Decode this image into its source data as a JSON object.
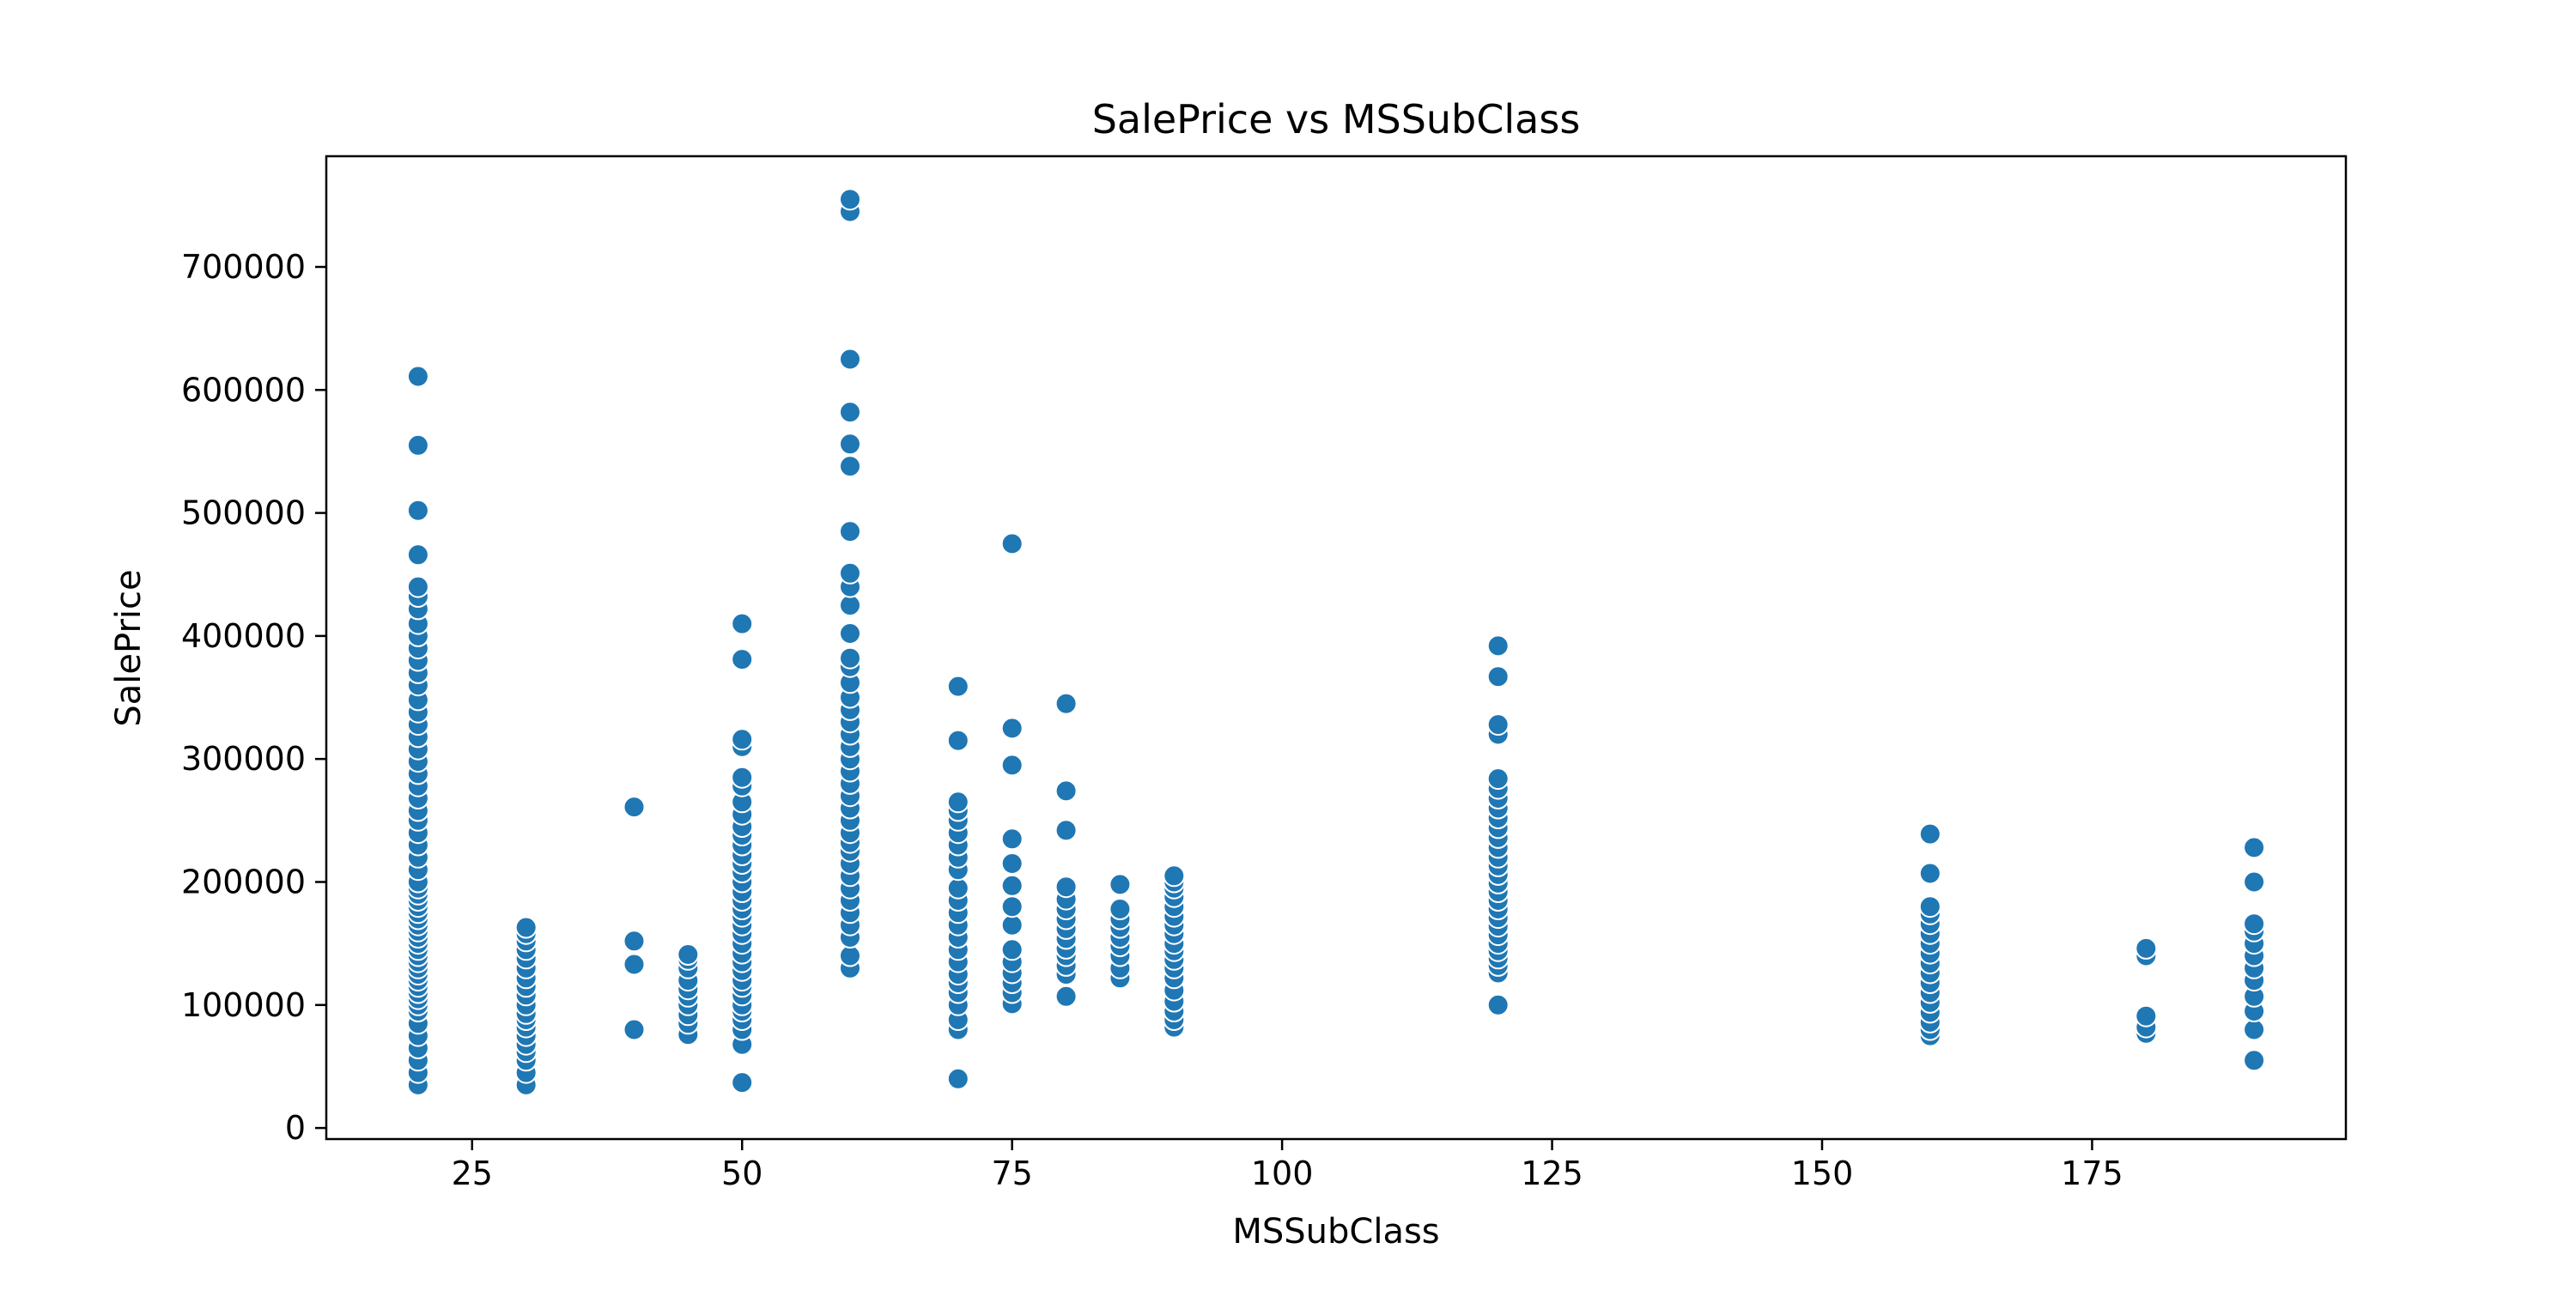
{
  "chart_data": {
    "type": "scatter",
    "title": "SalePrice vs MSSubClass",
    "xlabel": "MSSubClass",
    "ylabel": "SalePrice",
    "xlim": [
      11.5,
      198.5
    ],
    "ylim": [
      -9000,
      790000
    ],
    "xticks": [
      25,
      50,
      75,
      100,
      125,
      150,
      175
    ],
    "yticks": [
      0,
      100000,
      200000,
      300000,
      400000,
      500000,
      600000,
      700000
    ],
    "grid": false,
    "legend": "none",
    "marker_color": "#1f77b4",
    "marker_edge_color": "#ffffff",
    "series": [
      {
        "points": [
          [
            20,
            35000
          ],
          [
            20,
            45000
          ],
          [
            20,
            55000
          ],
          [
            20,
            65000
          ],
          [
            20,
            75000
          ],
          [
            20,
            85000
          ],
          [
            20,
            95000
          ],
          [
            20,
            100000
          ],
          [
            20,
            105000
          ],
          [
            20,
            110000
          ],
          [
            20,
            115000
          ],
          [
            20,
            120000
          ],
          [
            20,
            125000
          ],
          [
            20,
            130000
          ],
          [
            20,
            135000
          ],
          [
            20,
            140000
          ],
          [
            20,
            145000
          ],
          [
            20,
            150000
          ],
          [
            20,
            155000
          ],
          [
            20,
            160000
          ],
          [
            20,
            165000
          ],
          [
            20,
            170000
          ],
          [
            20,
            175000
          ],
          [
            20,
            180000
          ],
          [
            20,
            185000
          ],
          [
            20,
            190000
          ],
          [
            20,
            195000
          ],
          [
            20,
            200000
          ],
          [
            20,
            210000
          ],
          [
            20,
            220000
          ],
          [
            20,
            230000
          ],
          [
            20,
            240000
          ],
          [
            20,
            250000
          ],
          [
            20,
            258000
          ],
          [
            20,
            268000
          ],
          [
            20,
            278000
          ],
          [
            20,
            288000
          ],
          [
            20,
            298000
          ],
          [
            20,
            308000
          ],
          [
            20,
            318000
          ],
          [
            20,
            328000
          ],
          [
            20,
            338000
          ],
          [
            20,
            348000
          ],
          [
            20,
            360000
          ],
          [
            20,
            370000
          ],
          [
            20,
            380000
          ],
          [
            20,
            390000
          ],
          [
            20,
            400000
          ],
          [
            20,
            410000
          ],
          [
            20,
            422000
          ],
          [
            20,
            432000
          ],
          [
            20,
            440000
          ],
          [
            20,
            466000
          ],
          [
            20,
            502000
          ],
          [
            20,
            555000
          ],
          [
            20,
            611000
          ],
          [
            30,
            35000
          ],
          [
            30,
            45000
          ],
          [
            30,
            55000
          ],
          [
            30,
            62000
          ],
          [
            30,
            68000
          ],
          [
            30,
            75000
          ],
          [
            30,
            82000
          ],
          [
            30,
            88000
          ],
          [
            30,
            93000
          ],
          [
            30,
            100000
          ],
          [
            30,
            108000
          ],
          [
            30,
            115000
          ],
          [
            30,
            122000
          ],
          [
            30,
            130000
          ],
          [
            30,
            138000
          ],
          [
            30,
            145000
          ],
          [
            30,
            152000
          ],
          [
            30,
            158000
          ],
          [
            30,
            163000
          ],
          [
            40,
            80000
          ],
          [
            40,
            133000
          ],
          [
            40,
            152000
          ],
          [
            40,
            261000
          ],
          [
            45,
            76000
          ],
          [
            45,
            85000
          ],
          [
            45,
            92000
          ],
          [
            45,
            100000
          ],
          [
            45,
            107000
          ],
          [
            45,
            113000
          ],
          [
            45,
            120000
          ],
          [
            45,
            130000
          ],
          [
            45,
            137000
          ],
          [
            45,
            141000
          ],
          [
            50,
            37000
          ],
          [
            50,
            68000
          ],
          [
            50,
            80000
          ],
          [
            50,
            88000
          ],
          [
            50,
            95000
          ],
          [
            50,
            100000
          ],
          [
            50,
            108000
          ],
          [
            50,
            115000
          ],
          [
            50,
            120000
          ],
          [
            50,
            128000
          ],
          [
            50,
            135000
          ],
          [
            50,
            142000
          ],
          [
            50,
            150000
          ],
          [
            50,
            158000
          ],
          [
            50,
            165000
          ],
          [
            50,
            172000
          ],
          [
            50,
            178000
          ],
          [
            50,
            185000
          ],
          [
            50,
            192000
          ],
          [
            50,
            200000
          ],
          [
            50,
            208000
          ],
          [
            50,
            215000
          ],
          [
            50,
            222000
          ],
          [
            50,
            230000
          ],
          [
            50,
            238000
          ],
          [
            50,
            245000
          ],
          [
            50,
            255000
          ],
          [
            50,
            265000
          ],
          [
            50,
            278000
          ],
          [
            50,
            285000
          ],
          [
            50,
            310000
          ],
          [
            50,
            316000
          ],
          [
            50,
            381000
          ],
          [
            50,
            410000
          ],
          [
            60,
            130000
          ],
          [
            60,
            140000
          ],
          [
            60,
            155000
          ],
          [
            60,
            165000
          ],
          [
            60,
            175000
          ],
          [
            60,
            185000
          ],
          [
            60,
            195000
          ],
          [
            60,
            205000
          ],
          [
            60,
            215000
          ],
          [
            60,
            225000
          ],
          [
            60,
            232000
          ],
          [
            60,
            240000
          ],
          [
            60,
            250000
          ],
          [
            60,
            260000
          ],
          [
            60,
            270000
          ],
          [
            60,
            280000
          ],
          [
            60,
            290000
          ],
          [
            60,
            300000
          ],
          [
            60,
            310000
          ],
          [
            60,
            320000
          ],
          [
            60,
            330000
          ],
          [
            60,
            340000
          ],
          [
            60,
            350000
          ],
          [
            60,
            362000
          ],
          [
            60,
            375000
          ],
          [
            60,
            382000
          ],
          [
            60,
            402000
          ],
          [
            60,
            425000
          ],
          [
            60,
            440000
          ],
          [
            60,
            451000
          ],
          [
            60,
            485000
          ],
          [
            60,
            538000
          ],
          [
            60,
            556000
          ],
          [
            60,
            582000
          ],
          [
            60,
            625000
          ],
          [
            60,
            745000
          ],
          [
            60,
            755000
          ],
          [
            70,
            40000
          ],
          [
            70,
            80000
          ],
          [
            70,
            88000
          ],
          [
            70,
            100000
          ],
          [
            70,
            110000
          ],
          [
            70,
            118000
          ],
          [
            70,
            125000
          ],
          [
            70,
            135000
          ],
          [
            70,
            145000
          ],
          [
            70,
            155000
          ],
          [
            70,
            165000
          ],
          [
            70,
            175000
          ],
          [
            70,
            185000
          ],
          [
            70,
            195000
          ],
          [
            70,
            210000
          ],
          [
            70,
            220000
          ],
          [
            70,
            230000
          ],
          [
            70,
            240000
          ],
          [
            70,
            250000
          ],
          [
            70,
            258000
          ],
          [
            70,
            265000
          ],
          [
            70,
            315000
          ],
          [
            70,
            359000
          ],
          [
            75,
            101000
          ],
          [
            75,
            110000
          ],
          [
            75,
            118000
          ],
          [
            75,
            126000
          ],
          [
            75,
            135000
          ],
          [
            75,
            145000
          ],
          [
            75,
            165000
          ],
          [
            75,
            180000
          ],
          [
            75,
            197000
          ],
          [
            75,
            215000
          ],
          [
            75,
            235000
          ],
          [
            75,
            295000
          ],
          [
            75,
            325000
          ],
          [
            75,
            475000
          ],
          [
            80,
            107000
          ],
          [
            80,
            125000
          ],
          [
            80,
            132000
          ],
          [
            80,
            140000
          ],
          [
            80,
            146000
          ],
          [
            80,
            154000
          ],
          [
            80,
            162000
          ],
          [
            80,
            170000
          ],
          [
            80,
            178000
          ],
          [
            80,
            186000
          ],
          [
            80,
            196000
          ],
          [
            80,
            242000
          ],
          [
            80,
            274000
          ],
          [
            80,
            345000
          ],
          [
            85,
            122000
          ],
          [
            85,
            130000
          ],
          [
            85,
            140000
          ],
          [
            85,
            148000
          ],
          [
            85,
            155000
          ],
          [
            85,
            163000
          ],
          [
            85,
            170000
          ],
          [
            85,
            178000
          ],
          [
            85,
            198000
          ],
          [
            90,
            82000
          ],
          [
            90,
            88000
          ],
          [
            90,
            95000
          ],
          [
            90,
            103000
          ],
          [
            90,
            112000
          ],
          [
            90,
            122000
          ],
          [
            90,
            130000
          ],
          [
            90,
            137000
          ],
          [
            90,
            144000
          ],
          [
            90,
            150000
          ],
          [
            90,
            158000
          ],
          [
            90,
            165000
          ],
          [
            90,
            172000
          ],
          [
            90,
            180000
          ],
          [
            90,
            188000
          ],
          [
            90,
            195000
          ],
          [
            90,
            200000
          ],
          [
            90,
            205000
          ],
          [
            120,
            100000
          ],
          [
            120,
            126000
          ],
          [
            120,
            132000
          ],
          [
            120,
            138000
          ],
          [
            120,
            144000
          ],
          [
            120,
            150000
          ],
          [
            120,
            157000
          ],
          [
            120,
            164000
          ],
          [
            120,
            171000
          ],
          [
            120,
            178000
          ],
          [
            120,
            185000
          ],
          [
            120,
            192000
          ],
          [
            120,
            199000
          ],
          [
            120,
            206000
          ],
          [
            120,
            213000
          ],
          [
            120,
            220000
          ],
          [
            120,
            228000
          ],
          [
            120,
            236000
          ],
          [
            120,
            244000
          ],
          [
            120,
            252000
          ],
          [
            120,
            260000
          ],
          [
            120,
            268000
          ],
          [
            120,
            276000
          ],
          [
            120,
            284000
          ],
          [
            120,
            320000
          ],
          [
            120,
            328000
          ],
          [
            120,
            367000
          ],
          [
            120,
            392000
          ],
          [
            160,
            75000
          ],
          [
            160,
            80000
          ],
          [
            160,
            86000
          ],
          [
            160,
            94000
          ],
          [
            160,
            102000
          ],
          [
            160,
            110000
          ],
          [
            160,
            118000
          ],
          [
            160,
            126000
          ],
          [
            160,
            134000
          ],
          [
            160,
            142000
          ],
          [
            160,
            150000
          ],
          [
            160,
            158000
          ],
          [
            160,
            166000
          ],
          [
            160,
            174000
          ],
          [
            160,
            180000
          ],
          [
            160,
            207000
          ],
          [
            160,
            239000
          ],
          [
            180,
            77000
          ],
          [
            180,
            82000
          ],
          [
            180,
            91000
          ],
          [
            180,
            140000
          ],
          [
            180,
            146000
          ],
          [
            190,
            55000
          ],
          [
            190,
            80000
          ],
          [
            190,
            95000
          ],
          [
            190,
            107000
          ],
          [
            190,
            120000
          ],
          [
            190,
            130000
          ],
          [
            190,
            140000
          ],
          [
            190,
            150000
          ],
          [
            190,
            160000
          ],
          [
            190,
            166000
          ],
          [
            190,
            200000
          ],
          [
            190,
            228000
          ]
        ]
      }
    ]
  }
}
